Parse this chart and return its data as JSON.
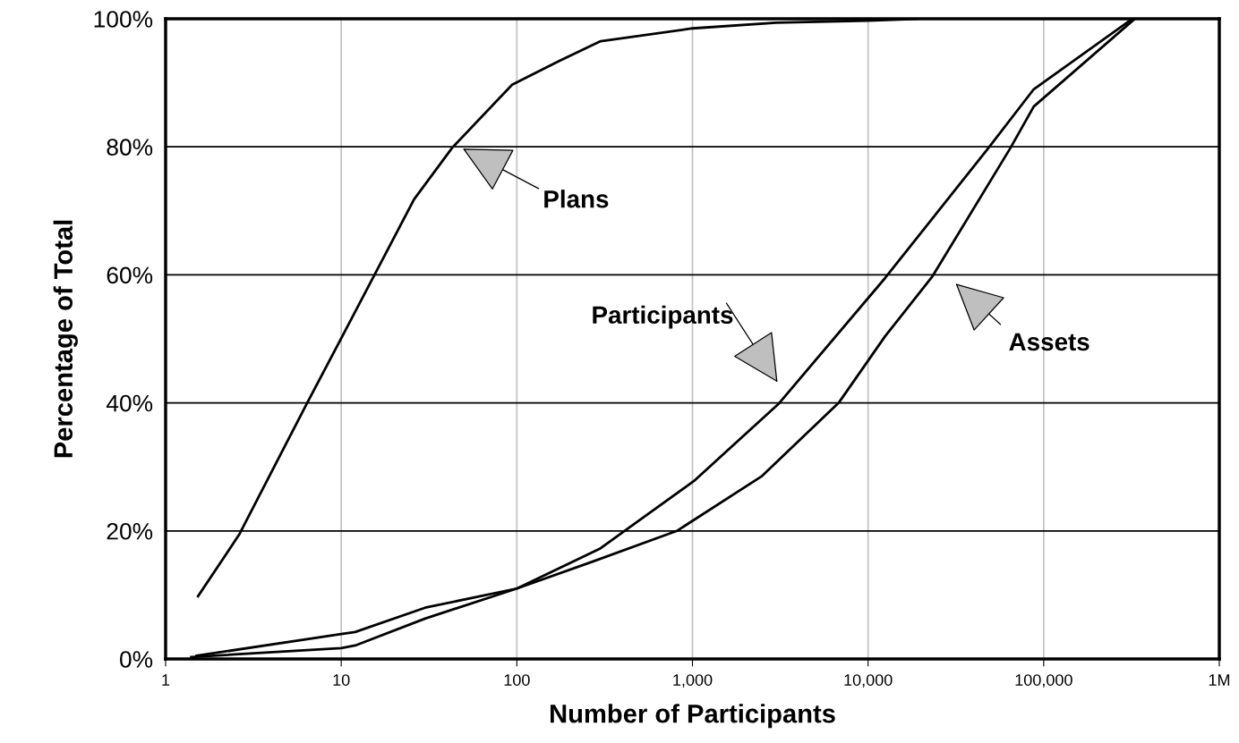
{
  "chart_data": {
    "type": "line",
    "xlabel": "Number of Participants",
    "ylabel": "Percentage of Total",
    "log": "x",
    "xlim": [
      1,
      1000000
    ],
    "ylim": [
      0,
      100
    ],
    "xticks": [
      {
        "value": 1,
        "label": "1"
      },
      {
        "value": 10,
        "label": "10"
      },
      {
        "value": 100,
        "label": "100"
      },
      {
        "value": 1000,
        "label": "1,000"
      },
      {
        "value": 10000,
        "label": "10,000"
      },
      {
        "value": 100000,
        "label": "100,000"
      },
      {
        "value": 1000000,
        "label": "1M"
      }
    ],
    "yticks": [
      {
        "value": 0,
        "label": "0%"
      },
      {
        "value": 20,
        "label": "20%"
      },
      {
        "value": 40,
        "label": "40%"
      },
      {
        "value": 60,
        "label": "60%"
      },
      {
        "value": 80,
        "label": "80%"
      },
      {
        "value": 100,
        "label": "100%"
      }
    ],
    "grid": true,
    "legend": false,
    "marker": "none",
    "line_style": "solid",
    "series": [
      {
        "color": "#000000",
        "x": [
          1.53,
          2.62,
          6.4,
          10,
          15.4,
          26,
          43,
          94,
          174,
          300,
          1000,
          3000,
          10000,
          19000
        ],
        "values": [
          9.8,
          19.4,
          40,
          50.1,
          59.9,
          71.8,
          79.9,
          89.7,
          93.4,
          96.5,
          98.5,
          99.4,
          99.7,
          100
        ]
      },
      {
        "color": "#000000",
        "x": [
          1.4,
          10,
          12,
          30,
          100,
          300,
          410,
          1020,
          3080,
          12500,
          48400,
          87800,
          320000
        ],
        "values": [
          0.3,
          1.7,
          2.1,
          6.3,
          11,
          17.3,
          20,
          27.8,
          39.8,
          59.5,
          79.8,
          89,
          100
        ]
      },
      {
        "color": "#000000",
        "x": [
          1.5,
          10,
          12,
          30,
          100,
          270,
          815,
          2470,
          6800,
          12500,
          23300,
          64600,
          87800,
          330000
        ],
        "values": [
          0.5,
          3.9,
          4.2,
          8,
          11,
          15.2,
          20,
          28.5,
          40,
          50.4,
          59.8,
          79.8,
          86.3,
          100
        ]
      }
    ],
    "annotations": [
      "Plans",
      "Participants",
      "Assets"
    ]
  }
}
